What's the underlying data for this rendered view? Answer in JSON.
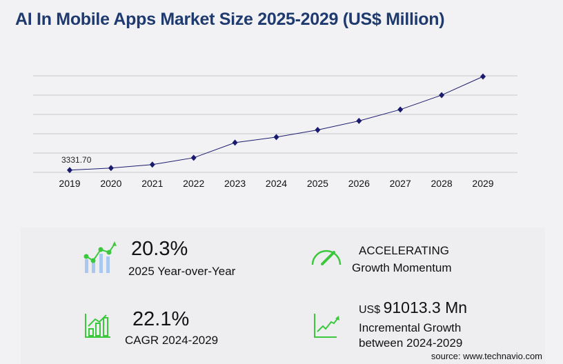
{
  "title": "AI In Mobile Apps Market Size 2025-2029 (US$ Million)",
  "chart_data": {
    "type": "line",
    "title": "AI In Mobile Apps Market Size 2025-2029 (US$ Million)",
    "categories": [
      "2019",
      "2020",
      "2021",
      "2022",
      "2023",
      "2024",
      "2025",
      "2026",
      "2027",
      "2028",
      "2029"
    ],
    "values": [
      3331.7,
      6430,
      11600,
      21940,
      44690,
      52960,
      63710,
      77260,
      94320,
      116040,
      143970
    ],
    "data_labels": {
      "2019": "3331.70"
    },
    "ylim": [
      0,
      145000
    ],
    "grid": true,
    "line_color": "#1a1a6e",
    "marker": "diamond"
  },
  "stats": {
    "yoy_value": "20.3%",
    "yoy_label": "2025 Year-over-Year",
    "momentum_value": "ACCELERATING",
    "momentum_label": "Growth Momentum",
    "cagr_value": "22.1%",
    "cagr_label": "CAGR 2024-2029",
    "incr_prefix": "US$",
    "incr_value": "91013.3 Mn",
    "incr_label_1": "Incremental Growth",
    "incr_label_2": "between 2024-2029"
  },
  "source": "source: www.technavio.com",
  "colors": {
    "title": "#1f3a6e",
    "accent_green": "#3cc83c",
    "bar_blue": "#a9c8f0"
  }
}
